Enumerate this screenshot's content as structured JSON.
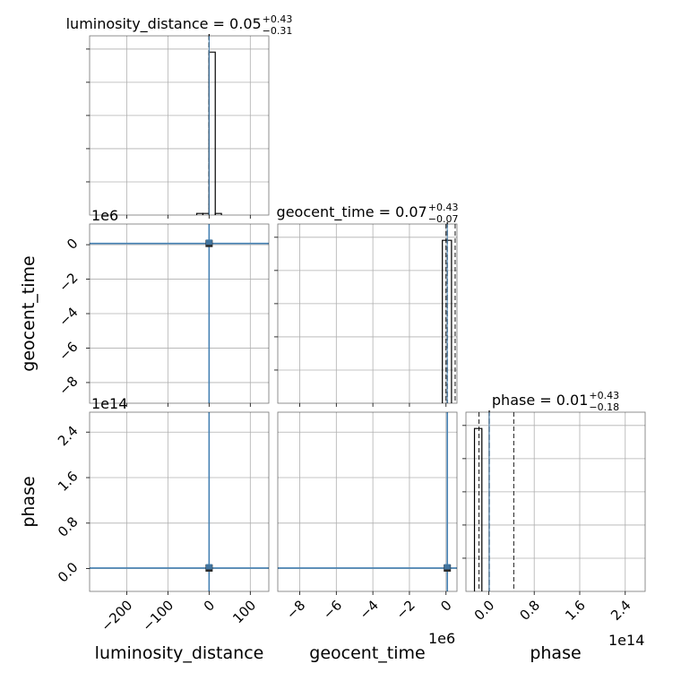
{
  "chart_data": {
    "type": "corner",
    "parameters": [
      "luminosity_distance",
      "geocent_time",
      "phase"
    ],
    "panels": [
      {
        "kind": "histogram",
        "row": 0,
        "col": 0,
        "title": {
          "name": "luminosity_distance",
          "value": "0.05",
          "plus": "+0.43",
          "minus": "−0.31"
        },
        "xlim": [
          -290,
          145
        ],
        "bins": [
          [
            -30,
            -15,
            0.01
          ],
          [
            -15,
            0,
            0.01
          ],
          [
            0,
            15,
            1.0
          ],
          [
            15,
            30,
            0.01
          ]
        ],
        "median": 0.05,
        "quantiles": [
          -0.26,
          0.48
        ]
      },
      {
        "kind": "histogram",
        "row": 1,
        "col": 1,
        "title": {
          "name": "geocent_time",
          "value": "0.07",
          "plus": "+0.43",
          "minus": "−0.07"
        },
        "xlim": [
          -9.2,
          0.6
        ],
        "bins": [
          [
            -0.2,
            0.3,
            1.0
          ]
        ],
        "median": 0.07,
        "quantiles": [
          0.0,
          0.5
        ]
      },
      {
        "kind": "histogram",
        "row": 2,
        "col": 2,
        "title": {
          "name": "phase",
          "value": "0.01",
          "plus": "+0.43",
          "minus": "−0.18"
        },
        "xlim": [
          -0.4,
          2.75
        ],
        "bins": [
          [
            -0.25,
            -0.12,
            1.0
          ]
        ],
        "median": 0.01,
        "quantiles": [
          -0.17,
          0.44
        ]
      },
      {
        "kind": "scatter",
        "row": 1,
        "col": 0,
        "x_param": "luminosity_distance",
        "y_param": "geocent_time",
        "xlim": [
          -290,
          145
        ],
        "ylim": [
          -9.2,
          1.2
        ],
        "point": [
          0.05,
          0.07
        ]
      },
      {
        "kind": "scatter",
        "row": 2,
        "col": 0,
        "x_param": "luminosity_distance",
        "y_param": "phase",
        "xlim": [
          -290,
          145
        ],
        "ylim": [
          -0.4,
          2.75
        ],
        "point": [
          0.05,
          0.01
        ]
      },
      {
        "kind": "scatter",
        "row": 2,
        "col": 1,
        "x_param": "geocent_time",
        "y_param": "phase",
        "xlim": [
          -9.2,
          0.6
        ],
        "ylim": [
          -0.4,
          2.75
        ],
        "point": [
          0.07,
          0.01
        ]
      }
    ],
    "x_ticks": [
      [
        -200,
        -100,
        0,
        100
      ],
      [
        -8,
        -6,
        -4,
        -2,
        0
      ],
      [
        0.0,
        0.8,
        1.6,
        2.4
      ]
    ],
    "x_tick_labels": [
      [
        "−200",
        "−100",
        "0",
        "100"
      ],
      [
        "−8",
        "−6",
        "−4",
        "−2",
        "0"
      ],
      [
        "0.0",
        "0.8",
        "1.6",
        "2.4"
      ]
    ],
    "y_ticks": {
      "geocent_time": [
        0,
        -2,
        -4,
        -6,
        -8
      ],
      "phase": [
        2.4,
        1.6,
        0.8,
        0.0
      ]
    },
    "y_tick_labels": {
      "geocent_time": [
        "0",
        "−2",
        "−4",
        "−6",
        "−8"
      ],
      "phase": [
        "2.4",
        "1.6",
        "0.8",
        "0.0"
      ]
    },
    "x_labels": [
      "luminosity_distance",
      "geocent_time",
      "phase"
    ],
    "y_labels": [
      "geocent_time",
      "phase"
    ],
    "offsets": {
      "geocent_time": "1e6",
      "phase": "1e14"
    },
    "grid": true,
    "colors": {
      "hist": "#000000",
      "median": "#000000",
      "truth": "#4682b4",
      "scatter": "#4682b4",
      "grid": "#b0b0b0"
    }
  }
}
